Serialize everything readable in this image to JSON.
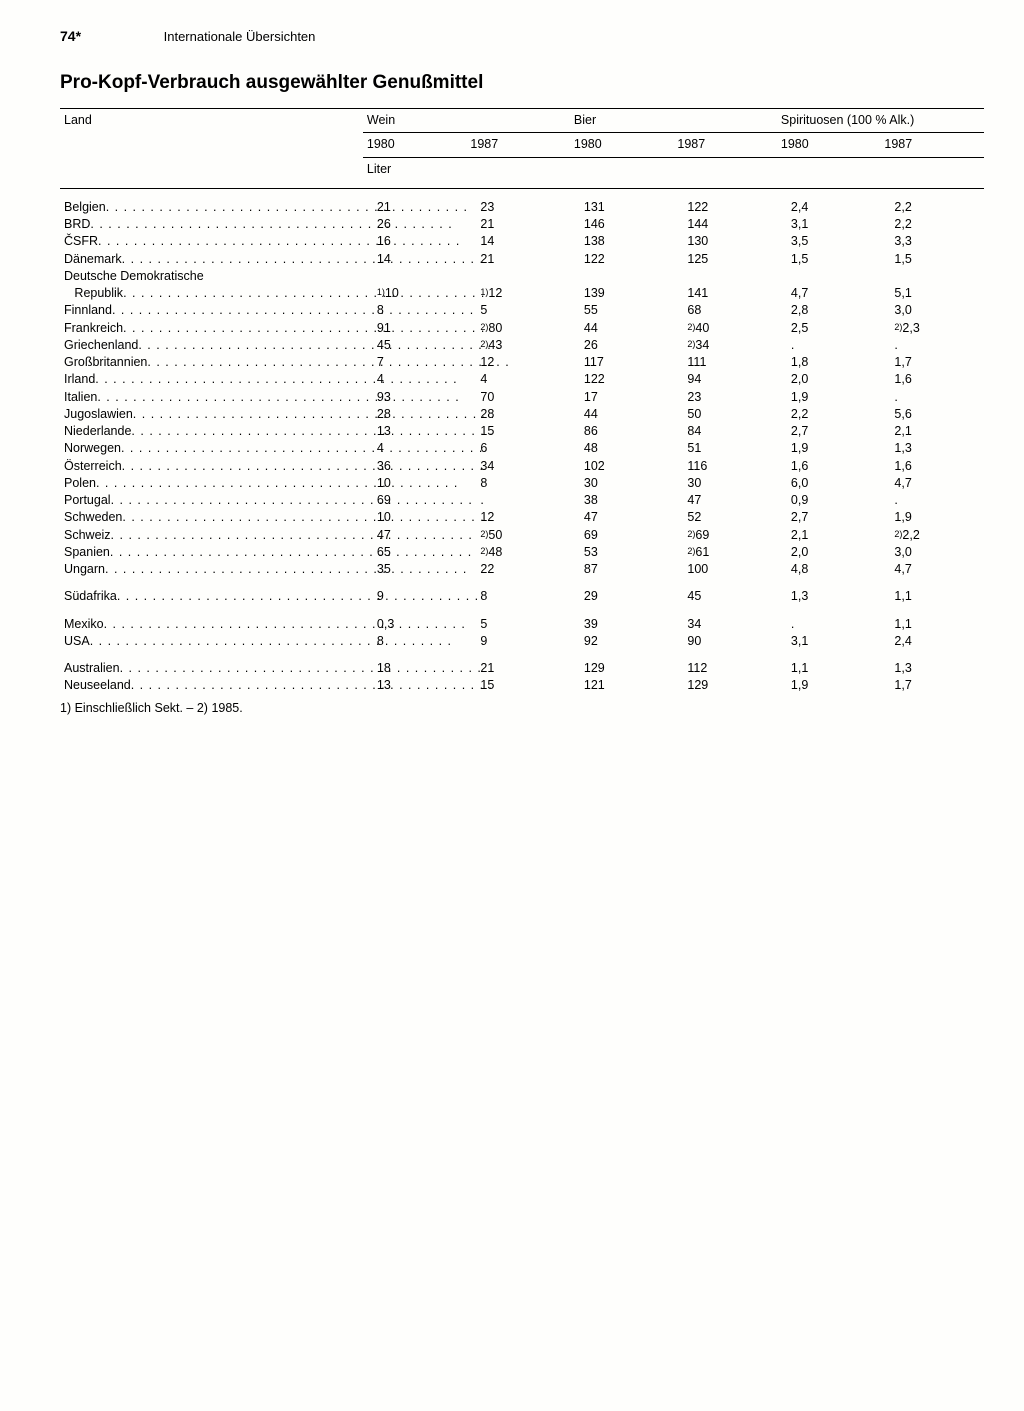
{
  "header": {
    "page_number": "74*",
    "section": "Internationale Übersichten"
  },
  "title": "Pro-Kopf-Verbrauch ausgewählter Genußmittel",
  "table": {
    "col_country": "Land",
    "groups": [
      "Wein",
      "Bier",
      "Spirituosen (100 % Alk.)"
    ],
    "years": [
      "1980",
      "1987"
    ],
    "unit": "Liter",
    "rows": [
      {
        "c": "Belgien",
        "v": [
          "21",
          "23",
          "131",
          "122",
          "2,4",
          "2,2"
        ]
      },
      {
        "c": "BRD",
        "v": [
          "26",
          "21",
          "146",
          "144",
          "3,1",
          "2,2"
        ]
      },
      {
        "c": "ČSFR",
        "v": [
          "16",
          "14",
          "138",
          "130",
          "3,5",
          "3,3"
        ]
      },
      {
        "c": "Dänemark",
        "v": [
          "14",
          "21",
          "122",
          "125",
          "1,5",
          "1,5"
        ]
      },
      {
        "c": "Deutsche Demokratische",
        "nodots": true,
        "v": [
          "",
          "",
          "",
          "",
          "",
          ""
        ]
      },
      {
        "c": "   Republik",
        "indent": true,
        "v": [
          "<sup>1)</sup>10",
          "<sup>1)</sup>12",
          "139",
          "141",
          "4,7",
          "5,1"
        ]
      },
      {
        "c": "Finnland",
        "v": [
          "8",
          "5",
          "55",
          "68",
          "2,8",
          "3,0"
        ]
      },
      {
        "c": "Frankreich",
        "v": [
          "91",
          "<sup>2)</sup>80",
          "44",
          "<sup>2)</sup>40",
          "2,5",
          "<sup>2)</sup>2,3"
        ]
      },
      {
        "c": "Griechenland",
        "v": [
          "45",
          "<sup>2)</sup>43",
          "26",
          "<sup>2)</sup>34",
          ".",
          "."
        ]
      },
      {
        "c": "Großbritannien",
        "v": [
          "7",
          "12",
          "117",
          "111",
          "1,8",
          "1,7"
        ]
      },
      {
        "c": "Irland",
        "v": [
          "4",
          "4",
          "122",
          "94",
          "2,0",
          "1,6"
        ]
      },
      {
        "c": "Italien",
        "v": [
          "93",
          "70",
          "17",
          "23",
          "1,9",
          "."
        ]
      },
      {
        "c": "Jugoslawien",
        "v": [
          "28",
          "28",
          "44",
          "50",
          "2,2",
          "5,6"
        ]
      },
      {
        "c": "Niederlande",
        "v": [
          "13",
          "15",
          "86",
          "84",
          "2,7",
          "2,1"
        ]
      },
      {
        "c": "Norwegen",
        "v": [
          "4",
          "6",
          "48",
          "51",
          "1,9",
          "1,3"
        ]
      },
      {
        "c": "Österreich",
        "v": [
          "36",
          "34",
          "102",
          "116",
          "1,6",
          "1,6"
        ]
      },
      {
        "c": "Polen",
        "v": [
          "10",
          "8",
          "30",
          "30",
          "6,0",
          "4,7"
        ]
      },
      {
        "c": "Portugal",
        "v": [
          "69",
          ".",
          "38",
          "47",
          "0,9",
          "."
        ]
      },
      {
        "c": "Schweden",
        "v": [
          "10",
          "12",
          "47",
          "52",
          "2,7",
          "1,9"
        ]
      },
      {
        "c": "Schweiz",
        "v": [
          "47",
          "<sup>2)</sup>50",
          "69",
          "<sup>2)</sup>69",
          "2,1",
          "<sup>2)</sup>2,2"
        ]
      },
      {
        "c": "Spanien",
        "v": [
          "65",
          "<sup>2)</sup>48",
          "53",
          "<sup>2)</sup>61",
          "2,0",
          "3,0"
        ]
      },
      {
        "c": "Ungarn",
        "v": [
          "35",
          "22",
          "87",
          "100",
          "4,8",
          "4,7"
        ]
      },
      {
        "g": true
      },
      {
        "c": "Südafrika",
        "v": [
          "9",
          "8",
          "29",
          "45",
          "1,3",
          "1,1"
        ]
      },
      {
        "g": true
      },
      {
        "c": "Mexiko",
        "v": [
          "0,3",
          "5",
          "39",
          "34",
          ".",
          "1,1"
        ]
      },
      {
        "c": "USA",
        "v": [
          "8",
          "9",
          "92",
          "90",
          "3,1",
          "2,4"
        ]
      },
      {
        "g": true
      },
      {
        "c": "Australien",
        "v": [
          "18",
          "21",
          "129",
          "112",
          "1,1",
          "1,3"
        ]
      },
      {
        "c": "Neuseeland",
        "v": [
          "13",
          "15",
          "121",
          "129",
          "1,9",
          "1,7"
        ]
      }
    ]
  },
  "footnote": "1) Einschließlich Sekt. – 2) 1985."
}
